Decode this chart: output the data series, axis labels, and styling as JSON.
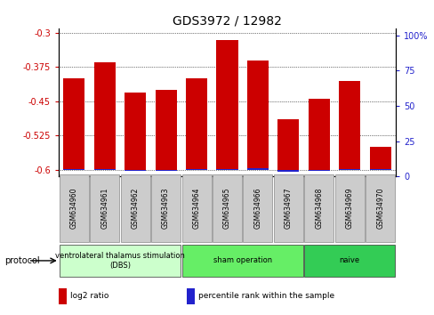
{
  "title": "GDS3972 / 12982",
  "categories": [
    "GSM634960",
    "GSM634961",
    "GSM634962",
    "GSM634963",
    "GSM634964",
    "GSM634965",
    "GSM634966",
    "GSM634967",
    "GSM634968",
    "GSM634969",
    "GSM634970"
  ],
  "log2_values": [
    -0.4,
    -0.365,
    -0.43,
    -0.425,
    -0.4,
    -0.315,
    -0.36,
    -0.49,
    -0.445,
    -0.405,
    -0.55
  ],
  "percentile_values": [
    5.5,
    5.5,
    4.0,
    4.0,
    5.5,
    5.5,
    6.0,
    3.0,
    4.0,
    5.0,
    5.0
  ],
  "bar_bottom": -0.6,
  "ylim_left": [
    -0.615,
    -0.29
  ],
  "ylim_right": [
    0,
    105
  ],
  "yticks_left": [
    -0.6,
    -0.525,
    -0.45,
    -0.375,
    -0.3
  ],
  "yticks_right": [
    0,
    25,
    50,
    75,
    100
  ],
  "bar_color_red": "#cc0000",
  "bar_color_blue": "#2222cc",
  "background_color": "#ffffff",
  "plot_bg_color": "#ffffff",
  "protocols": [
    {
      "label": "ventrolateral thalamus stimulation\n(DBS)",
      "start": 0,
      "end": 3,
      "color": "#ccffcc"
    },
    {
      "label": "sham operation",
      "start": 4,
      "end": 7,
      "color": "#66ee66"
    },
    {
      "label": "naive",
      "start": 8,
      "end": 10,
      "color": "#33cc55"
    }
  ],
  "legend_items": [
    {
      "color": "#cc0000",
      "label": "log2 ratio"
    },
    {
      "color": "#2222cc",
      "label": "percentile rank within the sample"
    }
  ],
  "left_axis_color": "#cc0000",
  "right_axis_color": "#2222cc",
  "title_fontsize": 10,
  "tick_fontsize": 7,
  "bar_width": 0.7,
  "label_gray": "#cccccc",
  "protocol_label": "protocol"
}
